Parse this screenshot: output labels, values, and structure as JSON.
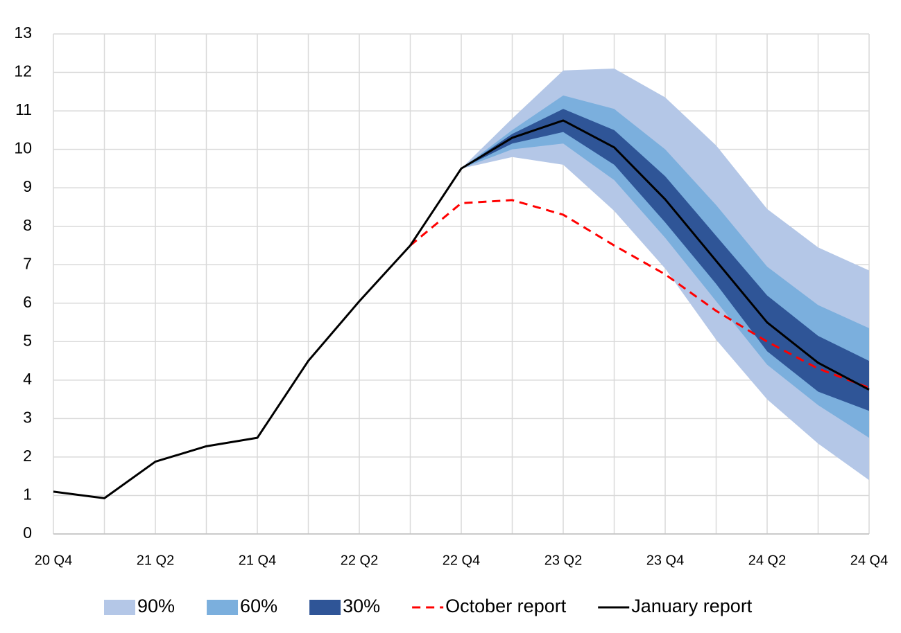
{
  "chart_data": {
    "type": "fan",
    "categories": [
      "20 Q4",
      null,
      "21 Q2",
      null,
      "21 Q4",
      null,
      "22 Q2",
      null,
      "22 Q4",
      null,
      "23 Q2",
      null,
      "23 Q4",
      null,
      "24 Q2",
      null,
      "24 Q4"
    ],
    "ylim": [
      0,
      13
    ],
    "yticks": [
      0,
      1,
      2,
      3,
      4,
      5,
      6,
      7,
      8,
      9,
      10,
      11,
      12,
      13
    ],
    "grid": true,
    "legend": "bottom",
    "series": [
      {
        "name": "90%",
        "color": "#b4c7e7",
        "style": "band",
        "upper": [
          null,
          null,
          null,
          null,
          null,
          null,
          null,
          null,
          9.5,
          10.8,
          12.05,
          12.1,
          11.35,
          10.1,
          8.45,
          7.45,
          6.85
        ],
        "lower": [
          null,
          null,
          null,
          null,
          null,
          null,
          null,
          null,
          9.5,
          9.8,
          9.6,
          8.4,
          6.9,
          5.05,
          3.5,
          2.35,
          1.4
        ]
      },
      {
        "name": "60%",
        "color": "#7bafdd",
        "style": "band",
        "upper": [
          null,
          null,
          null,
          null,
          null,
          null,
          null,
          null,
          9.5,
          10.5,
          11.4,
          11.05,
          10.0,
          8.55,
          6.95,
          5.95,
          5.35
        ],
        "lower": [
          null,
          null,
          null,
          null,
          null,
          null,
          null,
          null,
          9.5,
          10.0,
          10.15,
          9.2,
          7.7,
          6.05,
          4.4,
          3.35,
          2.5
        ]
      },
      {
        "name": "30%",
        "color": "#2f5597",
        "style": "band",
        "upper": [
          null,
          null,
          null,
          null,
          null,
          null,
          null,
          null,
          9.5,
          10.4,
          11.05,
          10.5,
          9.3,
          7.75,
          6.2,
          5.15,
          4.5
        ],
        "lower": [
          null,
          null,
          null,
          null,
          null,
          null,
          null,
          null,
          9.5,
          10.15,
          10.45,
          9.6,
          8.1,
          6.5,
          4.75,
          3.7,
          3.2
        ]
      },
      {
        "name": "October report",
        "color": "#ff0000",
        "style": "dashed",
        "values": [
          null,
          null,
          null,
          null,
          null,
          null,
          null,
          7.5,
          8.6,
          8.68,
          8.3,
          7.5,
          6.75,
          5.8,
          5.0,
          4.3,
          3.8
        ]
      },
      {
        "name": "January report",
        "color": "#000000",
        "style": "solid",
        "values": [
          1.1,
          0.93,
          1.88,
          2.28,
          2.5,
          4.5,
          6.05,
          7.5,
          9.5,
          10.3,
          10.75,
          10.05,
          8.7,
          7.1,
          5.5,
          4.45,
          3.75
        ]
      }
    ]
  }
}
